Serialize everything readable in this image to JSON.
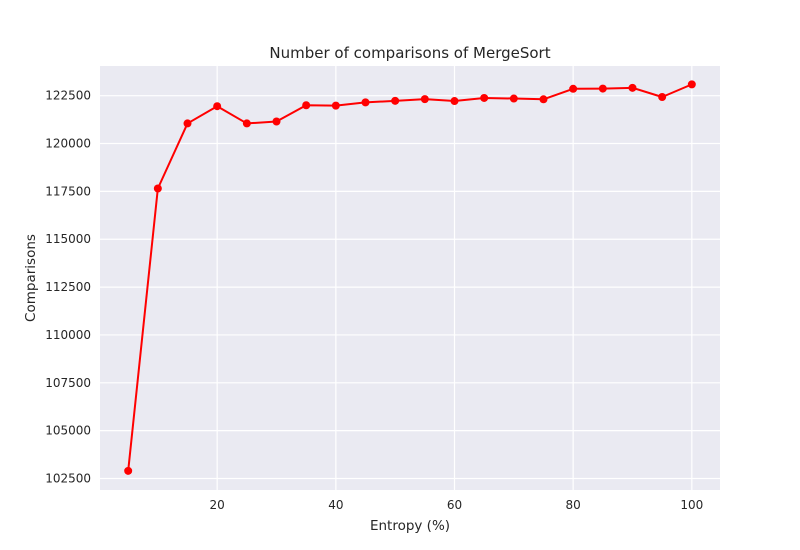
{
  "chart_data": {
    "type": "line",
    "title": "Number of comparisons of MergeSort",
    "xlabel": "Entropy (%)",
    "ylabel": "Comparisons",
    "xlim": [
      0.25,
      104.75
    ],
    "ylim": [
      101900,
      124050
    ],
    "xticks": [
      20,
      40,
      60,
      80,
      100
    ],
    "yticks": [
      102500,
      105000,
      107500,
      110000,
      112500,
      115000,
      117500,
      120000,
      122500
    ],
    "grid": true,
    "series": [
      {
        "color": "#ff0000",
        "marker": "circle",
        "x": [
          5,
          10,
          15,
          20,
          25,
          30,
          35,
          40,
          45,
          50,
          55,
          60,
          65,
          70,
          75,
          80,
          85,
          90,
          95,
          100
        ],
        "y": [
          102900,
          117650,
          121050,
          121950,
          121050,
          121150,
          122000,
          121980,
          122150,
          122230,
          122320,
          122220,
          122380,
          122350,
          122310,
          122860,
          122870,
          122910,
          122430,
          123090
        ]
      }
    ]
  }
}
